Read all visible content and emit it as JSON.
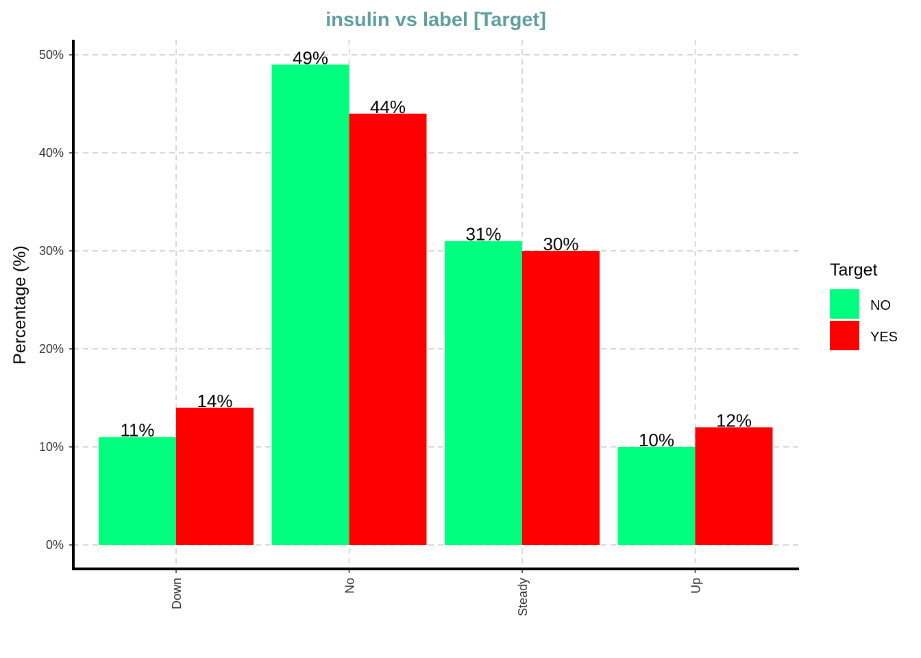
{
  "chart_data": {
    "type": "bar",
    "title": "insulin vs label [Target]",
    "xlabel": "",
    "ylabel": "Percentage (%)",
    "categories": [
      "Down",
      "No",
      "Steady",
      "Up"
    ],
    "series": [
      {
        "name": "NO",
        "color": "#00ff7f",
        "values": [
          11,
          49,
          31,
          10
        ],
        "labels": [
          "11%",
          "49%",
          "31%",
          "10%"
        ]
      },
      {
        "name": "YES",
        "color": "#ff0000",
        "values": [
          14,
          44,
          30,
          12
        ],
        "labels": [
          "14%",
          "44%",
          "30%",
          "12%"
        ]
      }
    ],
    "ylim": [
      0,
      50
    ],
    "yticks": [
      0,
      10,
      20,
      30,
      40,
      50
    ],
    "ytick_labels": [
      "0%",
      "10%",
      "20%",
      "30%",
      "40%",
      "50%"
    ],
    "grid": true,
    "legend": {
      "title": "Target",
      "position": "right"
    }
  }
}
